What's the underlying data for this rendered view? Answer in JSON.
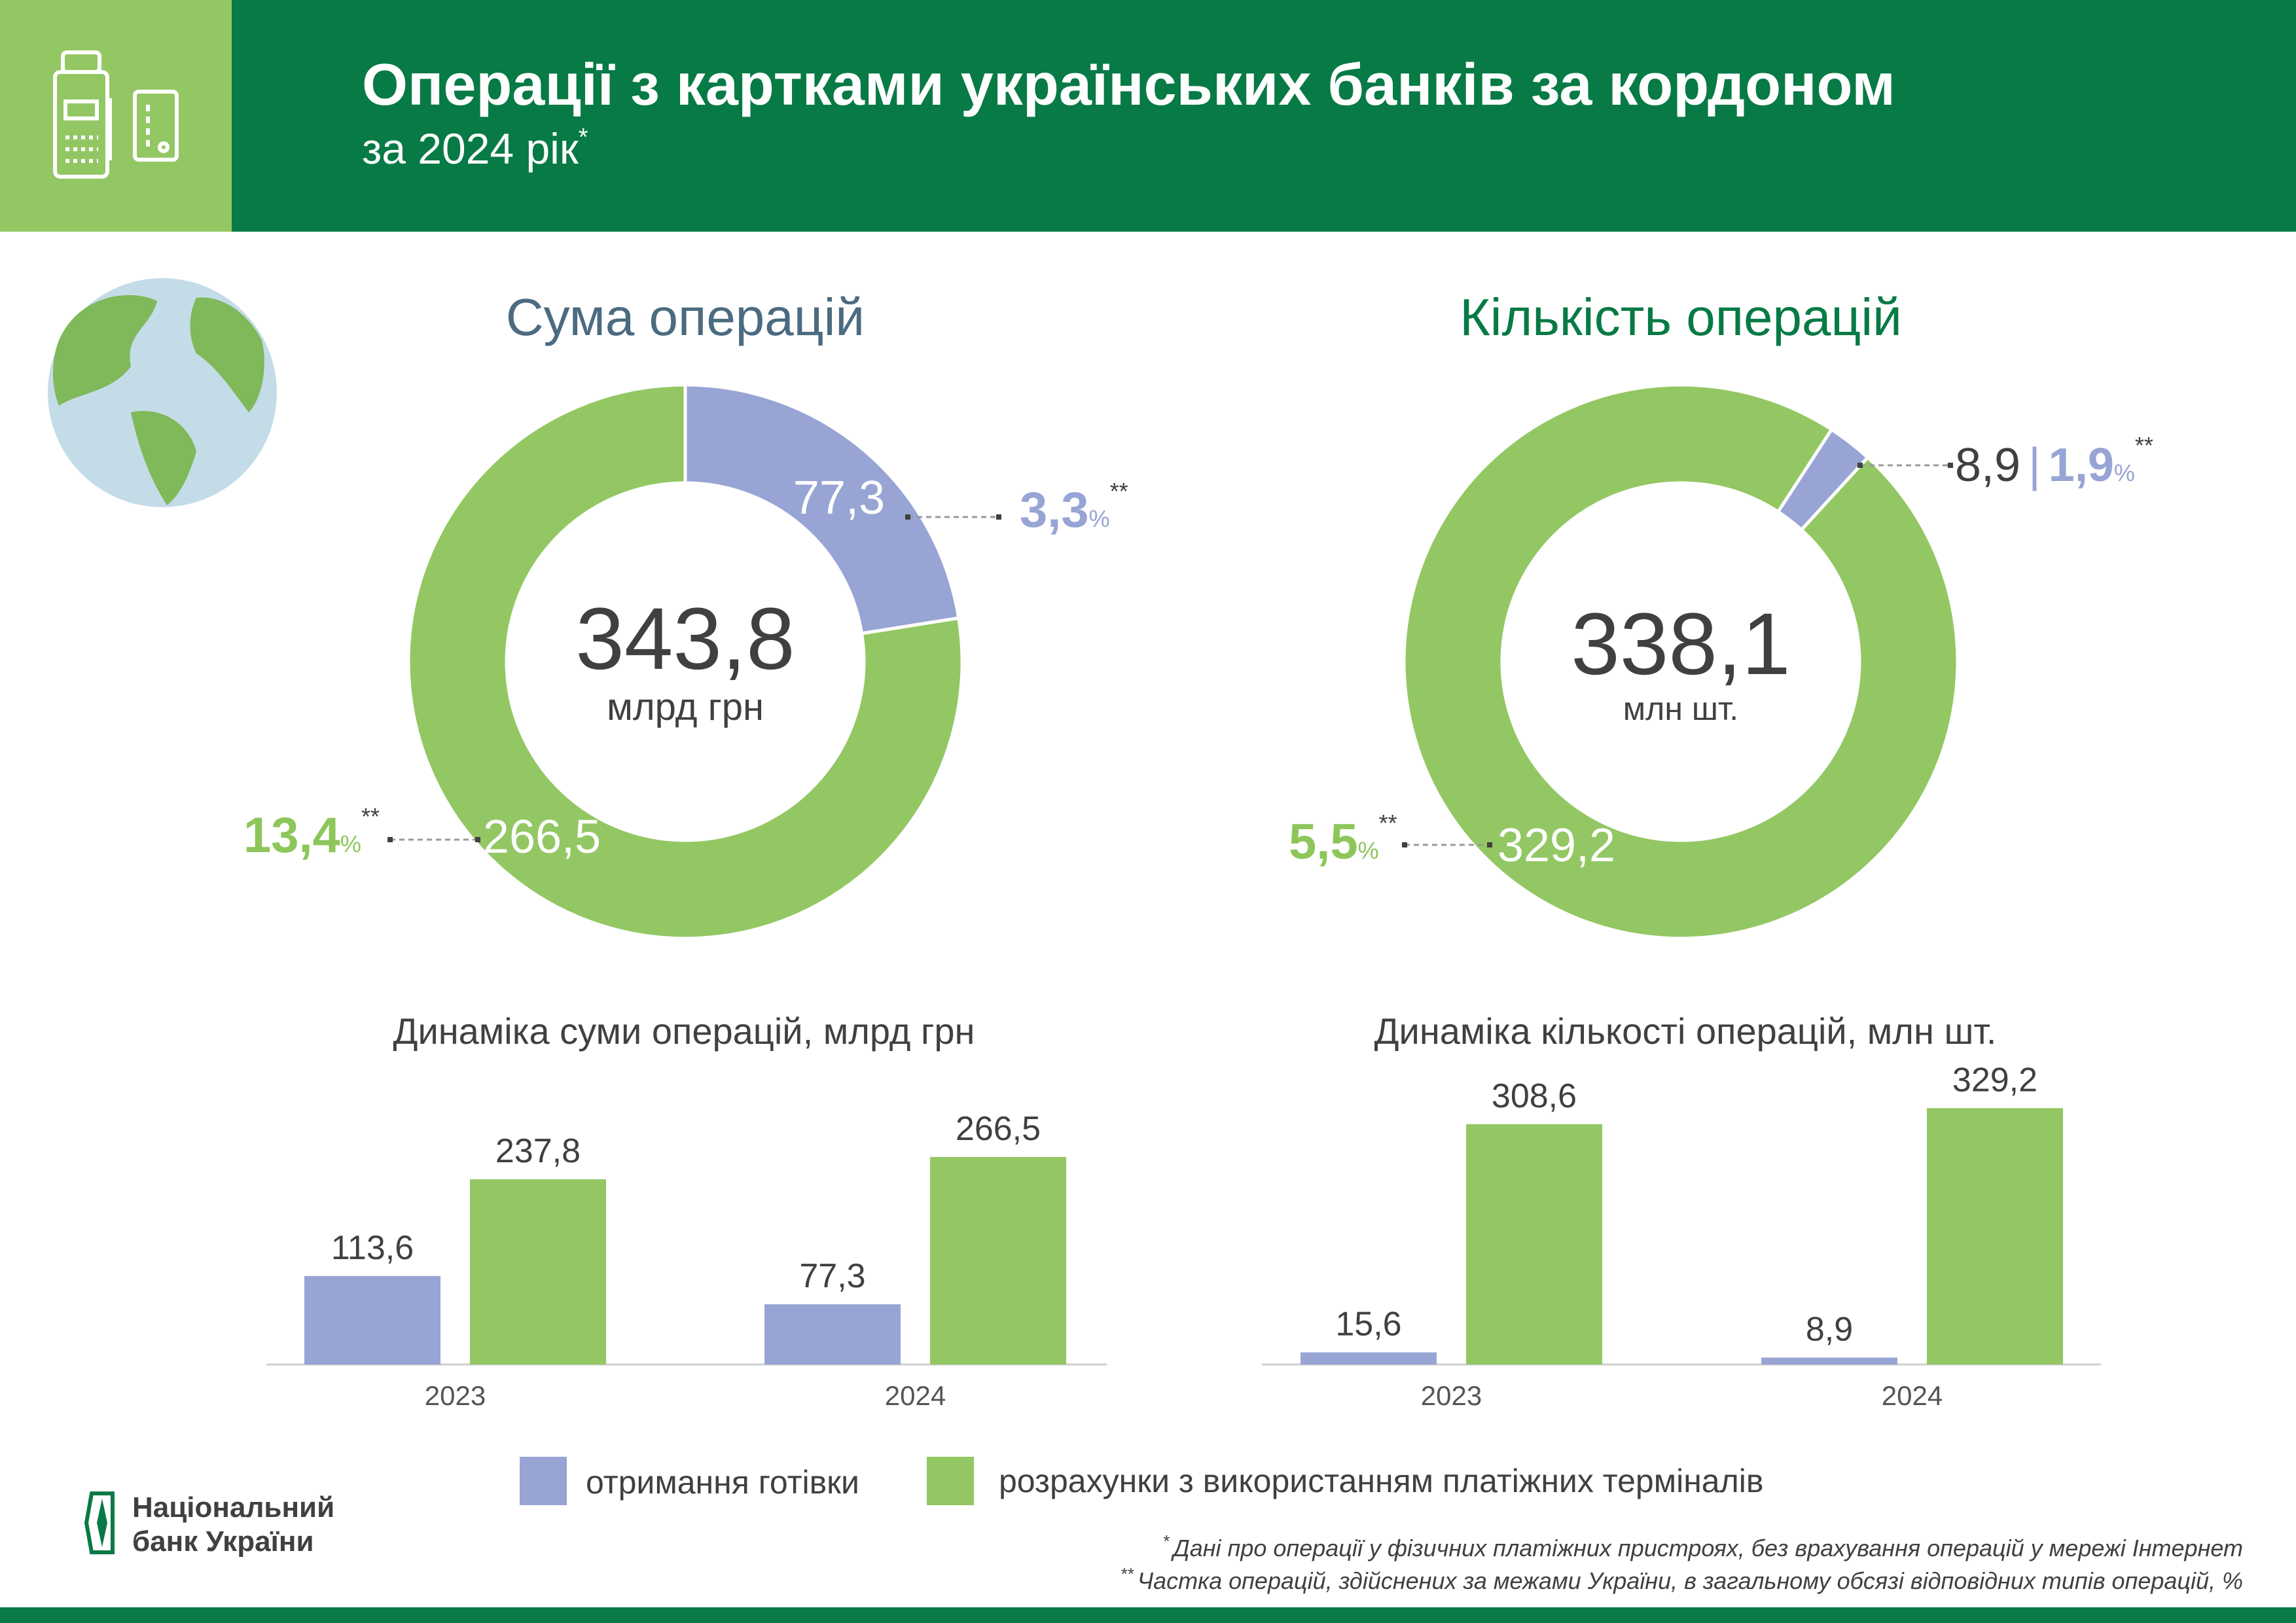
{
  "header": {
    "title": "Операції з картками українських банків за кордоном",
    "subtitle": "за 2024 рік",
    "subtitle_mark": "*",
    "icon": "pos-terminal-and-card-icon"
  },
  "colors": {
    "dark_green": "#077a45",
    "light_green": "#93c763",
    "blue": "#97a4d4",
    "sum_title": "#4b6b80",
    "text": "#404040"
  },
  "donut_sum": {
    "title": "Сума операцій",
    "total": "343,8",
    "unit": "млрд грн",
    "cash_value": "77,3",
    "cash_share": "3,3",
    "terminal_value": "266,5",
    "terminal_share": "13,4",
    "percent": "%",
    "mark": "**"
  },
  "donut_count": {
    "title": "Кількість операцій",
    "total": "338,1",
    "unit": "млн шт.",
    "cash_value": "8,9",
    "separator": "|",
    "cash_share": "1,9",
    "terminal_value": "329,2",
    "terminal_share": "5,5",
    "percent": "%",
    "mark": "**"
  },
  "chart_data": [
    {
      "type": "pie",
      "title": "Сума операцій",
      "categories": [
        "отримання готівки",
        "розрахунки з використанням платіжних терміналів"
      ],
      "values": [
        77.3,
        266.5
      ],
      "total": 343.8,
      "shares_pct": [
        3.3,
        13.4
      ]
    },
    {
      "type": "pie",
      "title": "Кількість операцій",
      "categories": [
        "отримання готівки",
        "розрахунки з використанням платіжних терміналів"
      ],
      "values": [
        8.9,
        329.2
      ],
      "total": 338.1,
      "shares_pct": [
        1.9,
        5.5
      ]
    },
    {
      "type": "bar",
      "title": "Динаміка суми операцій, млрд грн",
      "categories": [
        "2023",
        "2024"
      ],
      "series": [
        {
          "name": "отримання готівки",
          "values": [
            113.6,
            77.3
          ],
          "labels": [
            "113,6",
            "77,3"
          ]
        },
        {
          "name": "розрахунки з використанням платіжних терміналів",
          "values": [
            237.8,
            266.5
          ],
          "labels": [
            "237,8",
            "266,5"
          ]
        }
      ],
      "grid": false
    },
    {
      "type": "bar",
      "title": "Динаміка кількості операцій, млн шт.",
      "categories": [
        "2023",
        "2024"
      ],
      "series": [
        {
          "name": "отримання готівки",
          "values": [
            15.6,
            8.9
          ],
          "labels": [
            "15,6",
            "8,9"
          ]
        },
        {
          "name": "розрахунки з використанням платіжних терміналів",
          "values": [
            308.6,
            329.2
          ],
          "labels": [
            "308,6",
            "329,2"
          ]
        }
      ],
      "grid": false
    }
  ],
  "legend": {
    "cash": "отримання готівки",
    "terminals": "розрахунки з використанням платіжних терміналів"
  },
  "logo": {
    "line1": "Національний",
    "line2": "банк України"
  },
  "footnotes": {
    "mark1": "*",
    "note1": "Дані про операції у фізичних платіжних пристроях, без врахування операцій у мережі Інтернет",
    "mark2": "**",
    "note2": "Частка операцій, здійснених за межами України, в загальному обсязі відповідних типів операцій, %"
  }
}
